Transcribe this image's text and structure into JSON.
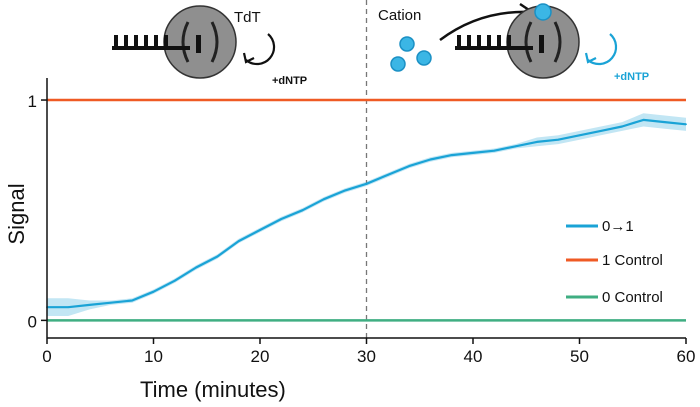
{
  "chart_data": {
    "type": "line",
    "xlabel": "Time (minutes)",
    "ylabel": "Signal",
    "xlim": [
      0,
      60
    ],
    "ylim": [
      -0.08,
      1.1
    ],
    "x_ticks": [
      0,
      10,
      20,
      30,
      40,
      50,
      60
    ],
    "y_ticks": [
      0,
      1
    ],
    "grid": false,
    "legend_position": "right",
    "vline": {
      "x": 30,
      "style": "dashed"
    },
    "series": [
      {
        "name": "0→1",
        "color": "#1aa3d6",
        "band_color": "#a8dcef",
        "x": [
          0,
          2,
          4,
          6,
          8,
          10,
          12,
          14,
          16,
          18,
          20,
          22,
          24,
          26,
          28,
          30,
          32,
          34,
          36,
          38,
          40,
          42,
          44,
          46,
          48,
          50,
          52,
          54,
          56,
          58,
          60
        ],
        "values": [
          0.06,
          0.06,
          0.07,
          0.08,
          0.09,
          0.13,
          0.18,
          0.24,
          0.29,
          0.36,
          0.41,
          0.46,
          0.5,
          0.55,
          0.59,
          0.62,
          0.66,
          0.7,
          0.73,
          0.75,
          0.76,
          0.77,
          0.79,
          0.81,
          0.82,
          0.84,
          0.86,
          0.88,
          0.91,
          0.9,
          0.89
        ],
        "band": [
          0.04,
          0.04,
          0.02,
          0.01,
          0.01,
          0.01,
          0.01,
          0.01,
          0.01,
          0.01,
          0.01,
          0.01,
          0.01,
          0.01,
          0.01,
          0.01,
          0.01,
          0.01,
          0.01,
          0.01,
          0.01,
          0.01,
          0.01,
          0.02,
          0.02,
          0.02,
          0.02,
          0.02,
          0.03,
          0.03,
          0.03
        ]
      },
      {
        "name": "1 Control",
        "color": "#ef5a24",
        "x": [
          0,
          60
        ],
        "values": [
          1.0,
          1.0
        ]
      },
      {
        "name": "0 Control",
        "color": "#3fae82",
        "x": [
          0,
          60
        ],
        "values": [
          0.0,
          0.0
        ]
      }
    ],
    "annotations": {
      "left": {
        "enzyme": "TdT",
        "reagent": "+dNTP"
      },
      "right": {
        "cation": "Cation",
        "reagent": "+dNTP"
      }
    }
  }
}
